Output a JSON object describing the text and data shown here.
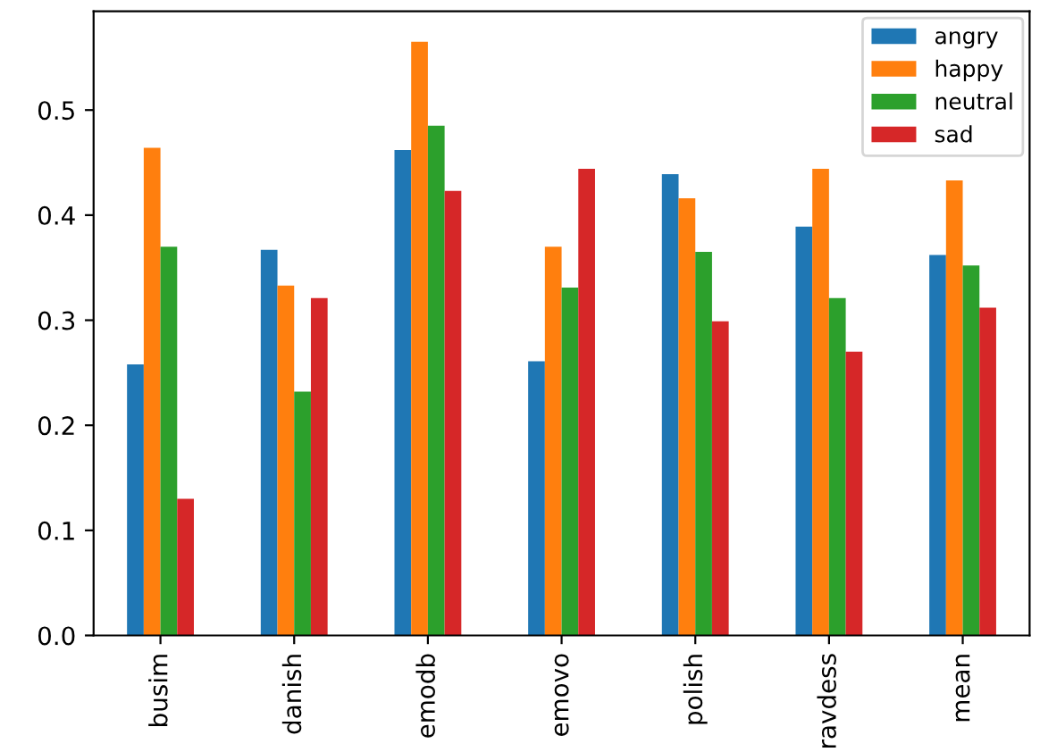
{
  "chart_data": {
    "type": "bar",
    "categories": [
      "busim",
      "danish",
      "emodb",
      "emovo",
      "polish",
      "ravdess",
      "mean"
    ],
    "series": [
      {
        "name": "angry",
        "color": "#1f77b4",
        "values": [
          0.258,
          0.367,
          0.462,
          0.261,
          0.439,
          0.389,
          0.362
        ]
      },
      {
        "name": "happy",
        "color": "#ff7f0e",
        "values": [
          0.464,
          0.333,
          0.565,
          0.37,
          0.416,
          0.444,
          0.433
        ]
      },
      {
        "name": "neutral",
        "color": "#2ca02c",
        "values": [
          0.37,
          0.232,
          0.485,
          0.331,
          0.365,
          0.321,
          0.352
        ]
      },
      {
        "name": "sad",
        "color": "#d62728",
        "values": [
          0.13,
          0.321,
          0.423,
          0.444,
          0.299,
          0.27,
          0.312
        ]
      }
    ],
    "ylim": [
      0,
      0.594
    ],
    "yticks": [
      {
        "value": 0,
        "label": "0.0"
      },
      0.1,
      0.2,
      0.3,
      0.4,
      0.5
    ],
    "legend": "top right",
    "grid": false
  }
}
